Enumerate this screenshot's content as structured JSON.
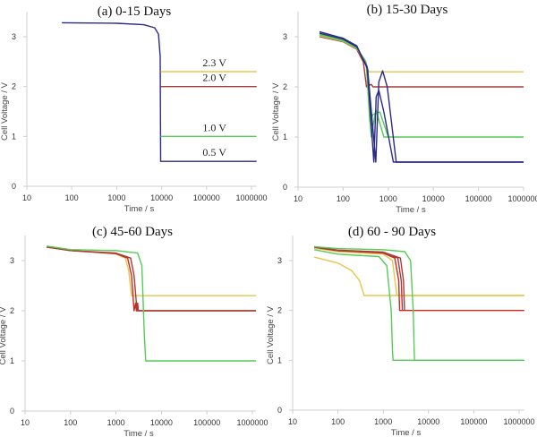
{
  "colors": {
    "2.3 V": "#e6c54f",
    "2.0 V": "#a63c3c",
    "1.0 V": "#55cc55",
    "0.5 V": "#2b2b86",
    "red": "#cc2a1a",
    "axis": "#cfcfcf"
  },
  "chart_data": [
    {
      "type": "line",
      "title": "(a) 0-15 Days",
      "xlabel": "Time / s",
      "ylabel": "Cell Voltage / V",
      "xscale": "log",
      "xlim": [
        10,
        1300000
      ],
      "ylim": [
        0,
        3.5
      ],
      "xticks": [
        "10",
        "100",
        "1000",
        "10000",
        "100000",
        "1000000"
      ],
      "yticks": [
        "0",
        "1",
        "2",
        "3"
      ],
      "grid": false,
      "annotations": [
        {
          "text": "2.3 V",
          "x": 150000,
          "y": 2.3
        },
        {
          "text": "2.0 V",
          "x": 150000,
          "y": 2.0
        },
        {
          "text": "1.0 V",
          "x": 150000,
          "y": 1.0
        },
        {
          "text": "0.5 V",
          "x": 150000,
          "y": 0.5
        }
      ],
      "series": [
        {
          "color": "0.5 V",
          "points": [
            [
              60,
              3.28
            ],
            [
              1000,
              3.27
            ],
            [
              4000,
              3.24
            ],
            [
              7000,
              3.18
            ],
            [
              8500,
              3.05
            ],
            [
              9300,
              2.6
            ],
            [
              9500,
              0.5
            ],
            [
              1300000,
              0.5
            ]
          ]
        },
        {
          "color": "2.3 V",
          "points": [
            [
              9500,
              2.3
            ],
            [
              1300000,
              2.3
            ]
          ]
        },
        {
          "color": "2.0 V",
          "points": [
            [
              9500,
              2.0
            ],
            [
              1300000,
              2.0
            ]
          ]
        },
        {
          "color": "1.0 V",
          "points": [
            [
              9500,
              1.0
            ],
            [
              1300000,
              1.0
            ]
          ]
        }
      ]
    },
    {
      "type": "line",
      "title": "(b) 15-30 Days",
      "xlabel": "Time / s",
      "ylabel": "Cell Voltage / V",
      "xscale": "log",
      "xlim": [
        10,
        1000000
      ],
      "ylim": [
        0,
        3.5
      ],
      "xticks": [
        "10",
        "100",
        "1000",
        "10000",
        "100000",
        "1000000"
      ],
      "yticks": [
        "0",
        "1",
        "2",
        "3"
      ],
      "grid": false,
      "series": [
        {
          "color": "2.0 V",
          "points": [
            [
              30,
              3.0
            ],
            [
              100,
              2.9
            ],
            [
              200,
              2.75
            ],
            [
              280,
              2.5
            ],
            [
              330,
              2.0
            ],
            [
              420,
              2.05
            ],
            [
              460,
              2.0
            ],
            [
              1000000,
              2.0
            ]
          ]
        },
        {
          "color": "2.3 V",
          "points": [
            [
              30,
              3.02
            ],
            [
              100,
              2.91
            ],
            [
              200,
              2.76
            ],
            [
              300,
              2.55
            ],
            [
              370,
              2.3
            ],
            [
              1000000,
              2.3
            ]
          ]
        },
        {
          "color": "1.0 V",
          "points": [
            [
              30,
              3.04
            ],
            [
              100,
              2.92
            ],
            [
              200,
              2.77
            ],
            [
              320,
              2.5
            ],
            [
              420,
              1.0
            ],
            [
              530,
              1.55
            ],
            [
              800,
              1.0
            ],
            [
              1000000,
              1.0
            ]
          ]
        },
        {
          "color": "1.0 V",
          "points": [
            [
              30,
              3.05
            ],
            [
              100,
              2.93
            ],
            [
              200,
              2.78
            ],
            [
              330,
              2.45
            ],
            [
              390,
              1.3
            ],
            [
              460,
              1.45
            ],
            [
              650,
              1.5
            ],
            [
              1000,
              1.0
            ]
          ]
        },
        {
          "color": "0.5 V",
          "points": [
            [
              30,
              3.07
            ],
            [
              100,
              2.95
            ],
            [
              200,
              2.8
            ],
            [
              340,
              2.4
            ],
            [
              480,
              0.5
            ],
            [
              540,
              1.8
            ],
            [
              620,
              1.93
            ],
            [
              800,
              1.5
            ],
            [
              1300,
              0.5
            ],
            [
              1000000,
              0.5
            ]
          ]
        },
        {
          "color": "0.5 V",
          "points": [
            [
              30,
              3.1
            ],
            [
              100,
              2.97
            ],
            [
              200,
              2.82
            ],
            [
              350,
              2.35
            ],
            [
              530,
              0.5
            ],
            [
              620,
              2.1
            ],
            [
              750,
              2.32
            ],
            [
              950,
              2.0
            ],
            [
              1500,
              0.5
            ],
            [
              1000000,
              0.5
            ]
          ]
        }
      ]
    },
    {
      "type": "line",
      "title": "(c) 45-60 Days",
      "xlabel": "Time / s",
      "ylabel": "Cell Voltage / V",
      "xscale": "log",
      "xlim": [
        10,
        1200000
      ],
      "ylim": [
        0,
        3.5
      ],
      "xticks": [
        "10",
        "100",
        "1000",
        "10000",
        "100000",
        "1000000"
      ],
      "yticks": [
        "0",
        "1",
        "2",
        "3"
      ],
      "grid": false,
      "series": [
        {
          "color": "2.3 V",
          "points": [
            [
              30,
              3.27
            ],
            [
              100,
              3.2
            ],
            [
              1000,
              3.13
            ],
            [
              1600,
              3.05
            ],
            [
              1900,
              2.8
            ],
            [
              2200,
              2.3
            ],
            [
              1200000,
              2.3
            ]
          ]
        },
        {
          "color": "red",
          "points": [
            [
              30,
              3.27
            ],
            [
              100,
              3.2
            ],
            [
              1000,
              3.14
            ],
            [
              1800,
              3.05
            ],
            [
              2200,
              2.7
            ],
            [
              2500,
              2.0
            ],
            [
              2700,
              2.15
            ],
            [
              2800,
              2.0
            ],
            [
              1200000,
              2.0
            ]
          ]
        },
        {
          "color": "2.0 V",
          "points": [
            [
              30,
              3.27
            ],
            [
              100,
              3.2
            ],
            [
              1000,
              3.15
            ],
            [
              2100,
              3.05
            ],
            [
              2500,
              2.7
            ],
            [
              2900,
              2.0
            ],
            [
              3000,
              2.15
            ],
            [
              3100,
              2.0
            ],
            [
              1200000,
              2.0
            ]
          ]
        },
        {
          "color": "1.0 V",
          "points": [
            [
              30,
              3.29
            ],
            [
              100,
              3.22
            ],
            [
              1000,
              3.2
            ],
            [
              3000,
              3.15
            ],
            [
              3700,
              2.9
            ],
            [
              4200,
              1.5
            ],
            [
              4500,
              1.0
            ],
            [
              1200000,
              1.0
            ]
          ]
        }
      ]
    },
    {
      "type": "line",
      "title": "(d) 60 - 90 Days",
      "xlabel": "Time / s",
      "ylabel": "Cell Voltage / V",
      "xscale": "log",
      "xlim": [
        10,
        1300000
      ],
      "ylim": [
        0,
        3.5
      ],
      "xticks": [
        "10",
        "100",
        "1000",
        "10000",
        "100000",
        "1000000"
      ],
      "yticks": [
        "0",
        "1",
        "2",
        "3"
      ],
      "grid": false,
      "series": [
        {
          "color": "2.3 V",
          "points": [
            [
              30,
              3.07
            ],
            [
              100,
              2.95
            ],
            [
              200,
              2.8
            ],
            [
              300,
              2.6
            ],
            [
              380,
              2.3
            ],
            [
              1300000,
              2.3
            ]
          ]
        },
        {
          "color": "1.0 V",
          "points": [
            [
              30,
              3.22
            ],
            [
              100,
              3.13
            ],
            [
              800,
              3.08
            ],
            [
              1200,
              2.9
            ],
            [
              1500,
              2.0
            ],
            [
              1600,
              1.2
            ],
            [
              1650,
              1.0
            ],
            [
              1300000,
              1.0
            ]
          ]
        },
        {
          "color": "2.3 V",
          "points": [
            [
              30,
              3.25
            ],
            [
              100,
              3.18
            ],
            [
              1000,
              3.13
            ],
            [
              1600,
              3.0
            ],
            [
              2000,
              2.3
            ],
            [
              1300000,
              2.3
            ]
          ]
        },
        {
          "color": "red",
          "points": [
            [
              30,
              3.27
            ],
            [
              100,
              3.2
            ],
            [
              1000,
              3.15
            ],
            [
              1800,
              3.05
            ],
            [
              2200,
              2.6
            ],
            [
              2300,
              2.0
            ],
            [
              1300000,
              2.0
            ]
          ]
        },
        {
          "color": "2.0 V",
          "points": [
            [
              30,
              3.27
            ],
            [
              100,
              3.2
            ],
            [
              1000,
              3.16
            ],
            [
              2100,
              3.05
            ],
            [
              2500,
              2.6
            ],
            [
              2650,
              2.0
            ]
          ]
        },
        {
          "color": "2.0 V",
          "points": [
            [
              30,
              3.28
            ],
            [
              100,
              3.21
            ],
            [
              1000,
              3.17
            ],
            [
              2400,
              3.05
            ],
            [
              2800,
              2.6
            ],
            [
              2950,
              2.0
            ]
          ]
        },
        {
          "color": "1.0 V",
          "points": [
            [
              30,
              3.28
            ],
            [
              100,
              3.24
            ],
            [
              1000,
              3.22
            ],
            [
              3000,
              3.18
            ],
            [
              4000,
              3.0
            ],
            [
              4600,
              2.0
            ],
            [
              4800,
              1.25
            ],
            [
              4900,
              1.0
            ],
            [
              1300000,
              1.0
            ]
          ]
        }
      ]
    }
  ]
}
